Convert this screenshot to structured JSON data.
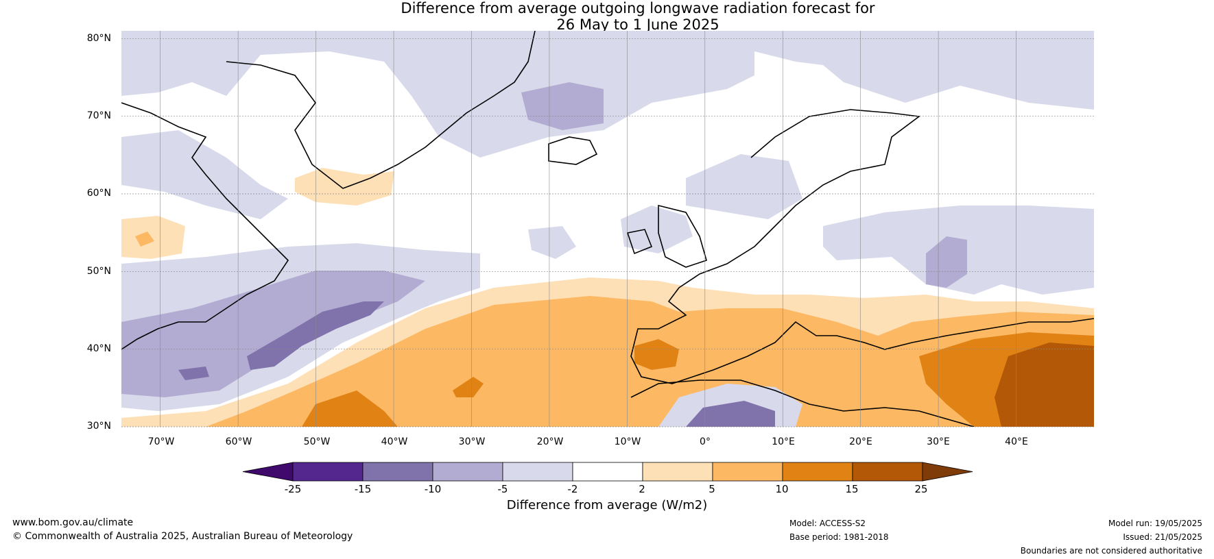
{
  "title": {
    "line1": "Difference from average outgoing longwave radiation forecast for",
    "line2": "26 May to 1 June 2025"
  },
  "map": {
    "lat_labels": [
      "80°N",
      "70°N",
      "60°N",
      "50°N",
      "40°N",
      "30°N"
    ],
    "lon_labels": [
      "70°W",
      "60°W",
      "50°W",
      "40°W",
      "30°W",
      "20°W",
      "10°W",
      "0°",
      "10°E",
      "20°E",
      "30°E",
      "40°E"
    ],
    "extent": {
      "lon_min": -75,
      "lon_max": 50,
      "lat_min": 30,
      "lat_max": 81
    },
    "colors": {
      "coast": "#000000",
      "borders": "#808080",
      "grid": "#555555"
    }
  },
  "colorbar": {
    "title": "Difference from average (W/m2)",
    "ticks": [
      "-25",
      "-15",
      "-10",
      "-5",
      "-2",
      "2",
      "5",
      "10",
      "15",
      "25"
    ],
    "colors": [
      "#3f0a6b",
      "#54278f",
      "#8073ac",
      "#b2abd2",
      "#d8daeb",
      "#ffffff",
      "#fee0b6",
      "#fdb863",
      "#e08214",
      "#b35806",
      "#7f3b08"
    ]
  },
  "footer": {
    "website": "www.bom.gov.au/climate",
    "copyright": "© Commonwealth of Australia 2025, Australian Bureau of Meteorology",
    "model": "Model: ACCESS-S2",
    "base_period": "Base period: 1981-2018",
    "model_run": "Model run: 19/05/2025",
    "issued": "Issued: 21/05/2025",
    "disclaimer": "Boundaries are not considered authoritative"
  }
}
